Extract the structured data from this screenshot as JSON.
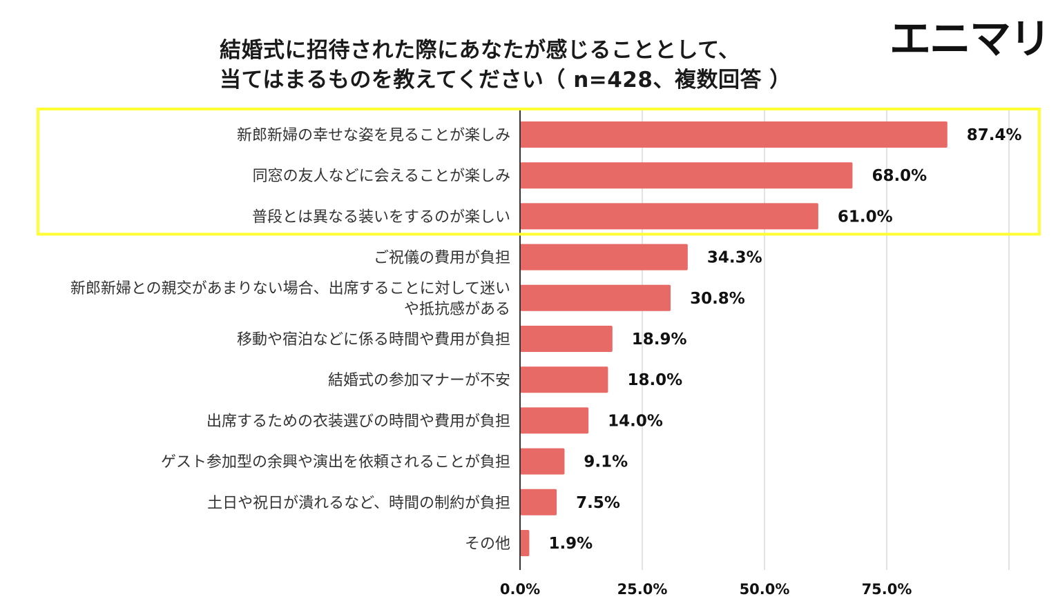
{
  "brand": "エニマリ",
  "title_line1": "結婚式に招待された際にあなたが感じることとして、",
  "title_line2": "当てはまるものを教えてください（ n=428、複数回答 ）",
  "colors": {
    "bar": "#e86a66",
    "highlight": "#ffff33",
    "grid": "#d9d9d9",
    "axis": "#333333"
  },
  "chart_data": {
    "type": "bar",
    "orientation": "horizontal",
    "title": "結婚式に招待された際にあなたが感じることとして、当てはまるものを教えてください（ n=428、複数回答 ）",
    "categories": [
      [
        "新郎新婦の幸せな姿を見ることが楽しみ"
      ],
      [
        "同窓の友人などに会えることが楽しみ"
      ],
      [
        "普段とは異なる装いをするのが楽しい"
      ],
      [
        "ご祝儀の費用が負担"
      ],
      [
        "新郎新婦との親交があまりない場合、出席することに対して迷い",
        "や抵抗感がある"
      ],
      [
        "移動や宿泊などに係る時間や費用が負担"
      ],
      [
        "結婚式の参加マナーが不安"
      ],
      [
        "出席するための衣装選びの時間や費用が負担"
      ],
      [
        "ゲスト参加型の余興や演出を依頼されることが負担"
      ],
      [
        "土日や祝日が潰れるなど、時間の制約が負担"
      ],
      [
        "その他"
      ]
    ],
    "values": [
      87.4,
      68.0,
      61.0,
      34.3,
      30.8,
      18.9,
      18.0,
      14.0,
      9.1,
      7.5,
      1.9
    ],
    "value_labels": [
      "87.4%",
      "68.0%",
      "61.0%",
      "34.3%",
      "30.8%",
      "18.9%",
      "18.0%",
      "14.0%",
      "9.1%",
      "7.5%",
      "1.9%"
    ],
    "x_ticks": [
      0,
      25,
      50,
      75,
      100
    ],
    "x_tick_labels": [
      "0.0%",
      "25.0%",
      "50.0%",
      "75.0%",
      ""
    ],
    "xlim": [
      0,
      100
    ],
    "highlighted_indices": [
      0,
      1,
      2
    ],
    "grid": true
  }
}
